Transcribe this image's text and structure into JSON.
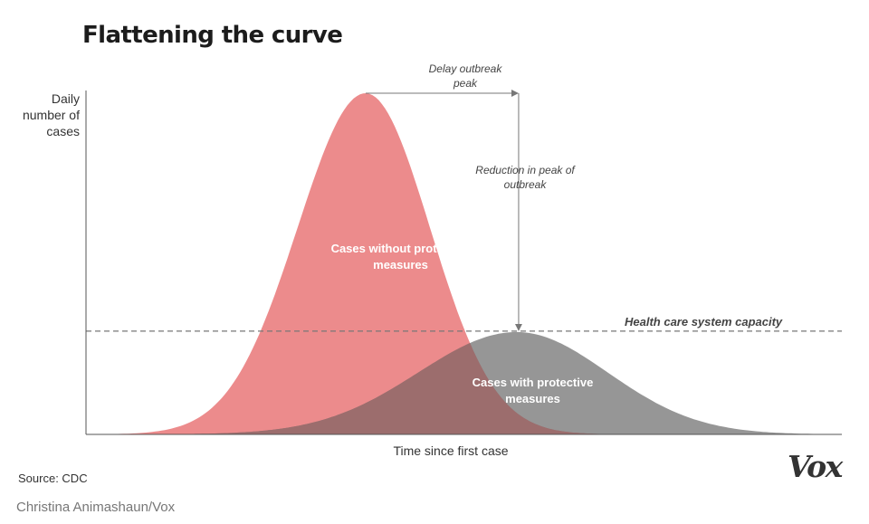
{
  "title": "Flattening the curve",
  "source": "Source: CDC",
  "credit": "Christina Animashaun/Vox",
  "brand": "Vox",
  "colors": {
    "without_measures": "#ec8b8c",
    "with_measures": "#6e6e6e",
    "overlap": "#9c6d6d",
    "axis": "#555555",
    "capacity_line": "#777777"
  },
  "chart_data": {
    "type": "area",
    "xlabel": "Time since first case",
    "ylabel": "Daily\nnumber of\ncases",
    "x": [
      0,
      1
    ],
    "series": [
      {
        "name": "Cases without protective measures",
        "peak_time": 0.37,
        "peak_value": 1.0
      },
      {
        "name": "Cases with protective measures",
        "peak_time": 0.57,
        "peak_value": 0.3
      }
    ],
    "threshold": {
      "label": "Health care system capacity",
      "value": 0.3
    },
    "annotations": [
      {
        "id": "delay",
        "text": "Delay outbreak\npeak"
      },
      {
        "id": "reduction",
        "text": "Reduction in peak of\noutbreak"
      }
    ],
    "ylim": [
      0,
      1.0
    ],
    "grid": false
  }
}
